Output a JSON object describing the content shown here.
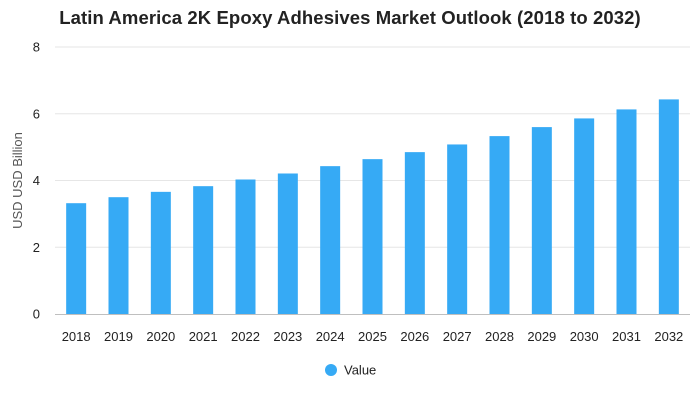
{
  "chart_data": {
    "type": "bar",
    "title": "Latin America 2K Epoxy Adhesives Market Outlook (2018 to 2032)",
    "xlabel": "",
    "ylabel": "USD USD Billion",
    "categories": [
      "2018",
      "2019",
      "2020",
      "2021",
      "2022",
      "2023",
      "2024",
      "2025",
      "2026",
      "2027",
      "2028",
      "2029",
      "2030",
      "2031",
      "2032"
    ],
    "series": [
      {
        "name": "Value",
        "values": [
          3.32,
          3.5,
          3.66,
          3.83,
          4.03,
          4.21,
          4.43,
          4.64,
          4.85,
          5.08,
          5.33,
          5.6,
          5.86,
          6.13,
          6.43
        ],
        "color": "#36aaf5"
      }
    ],
    "ylim": [
      0,
      8
    ],
    "yticks": [
      0,
      2,
      4,
      6,
      8
    ],
    "grid": true,
    "legend_position": "bottom"
  }
}
